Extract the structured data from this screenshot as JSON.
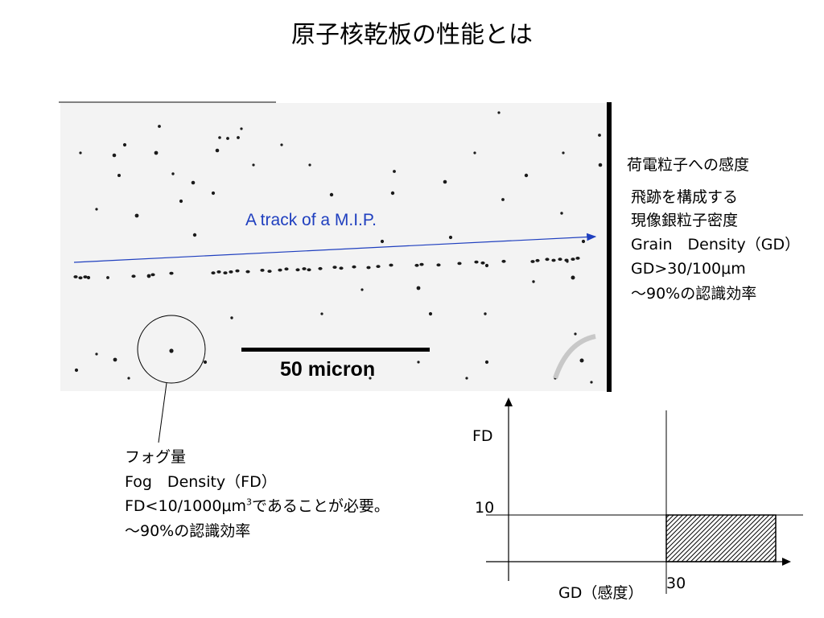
{
  "title": "原子核乾板の性能とは",
  "micrograph": {
    "track_label": "A track of a M.I.P.",
    "scale_label": "50 micron"
  },
  "sensitivity": {
    "heading": "荷電粒子への感度",
    "lines": [
      "飛跡を構成する",
      "現像銀粒子密度",
      "Grain　Density（GD）",
      "GD>30/100μm",
      "～90%の認識効率"
    ]
  },
  "fog": {
    "line1": "フォグ量",
    "line2": "Fog　Density（FD）",
    "line3_prefix": "FD<10/1000μm",
    "line3_sup": "3",
    "line3_suffix": "であることが必要。",
    "line4": "～90%の認識効率"
  },
  "graph": {
    "y_axis_label": "FD",
    "x_axis_label": "GD（感度）",
    "y_threshold": "10",
    "x_threshold": "30",
    "region_fill": "hatched"
  },
  "colors": {
    "track_arrow": "#1f3fbf",
    "grain": "#1a1a1a",
    "micrograph_bg": "#f3f3f3"
  }
}
